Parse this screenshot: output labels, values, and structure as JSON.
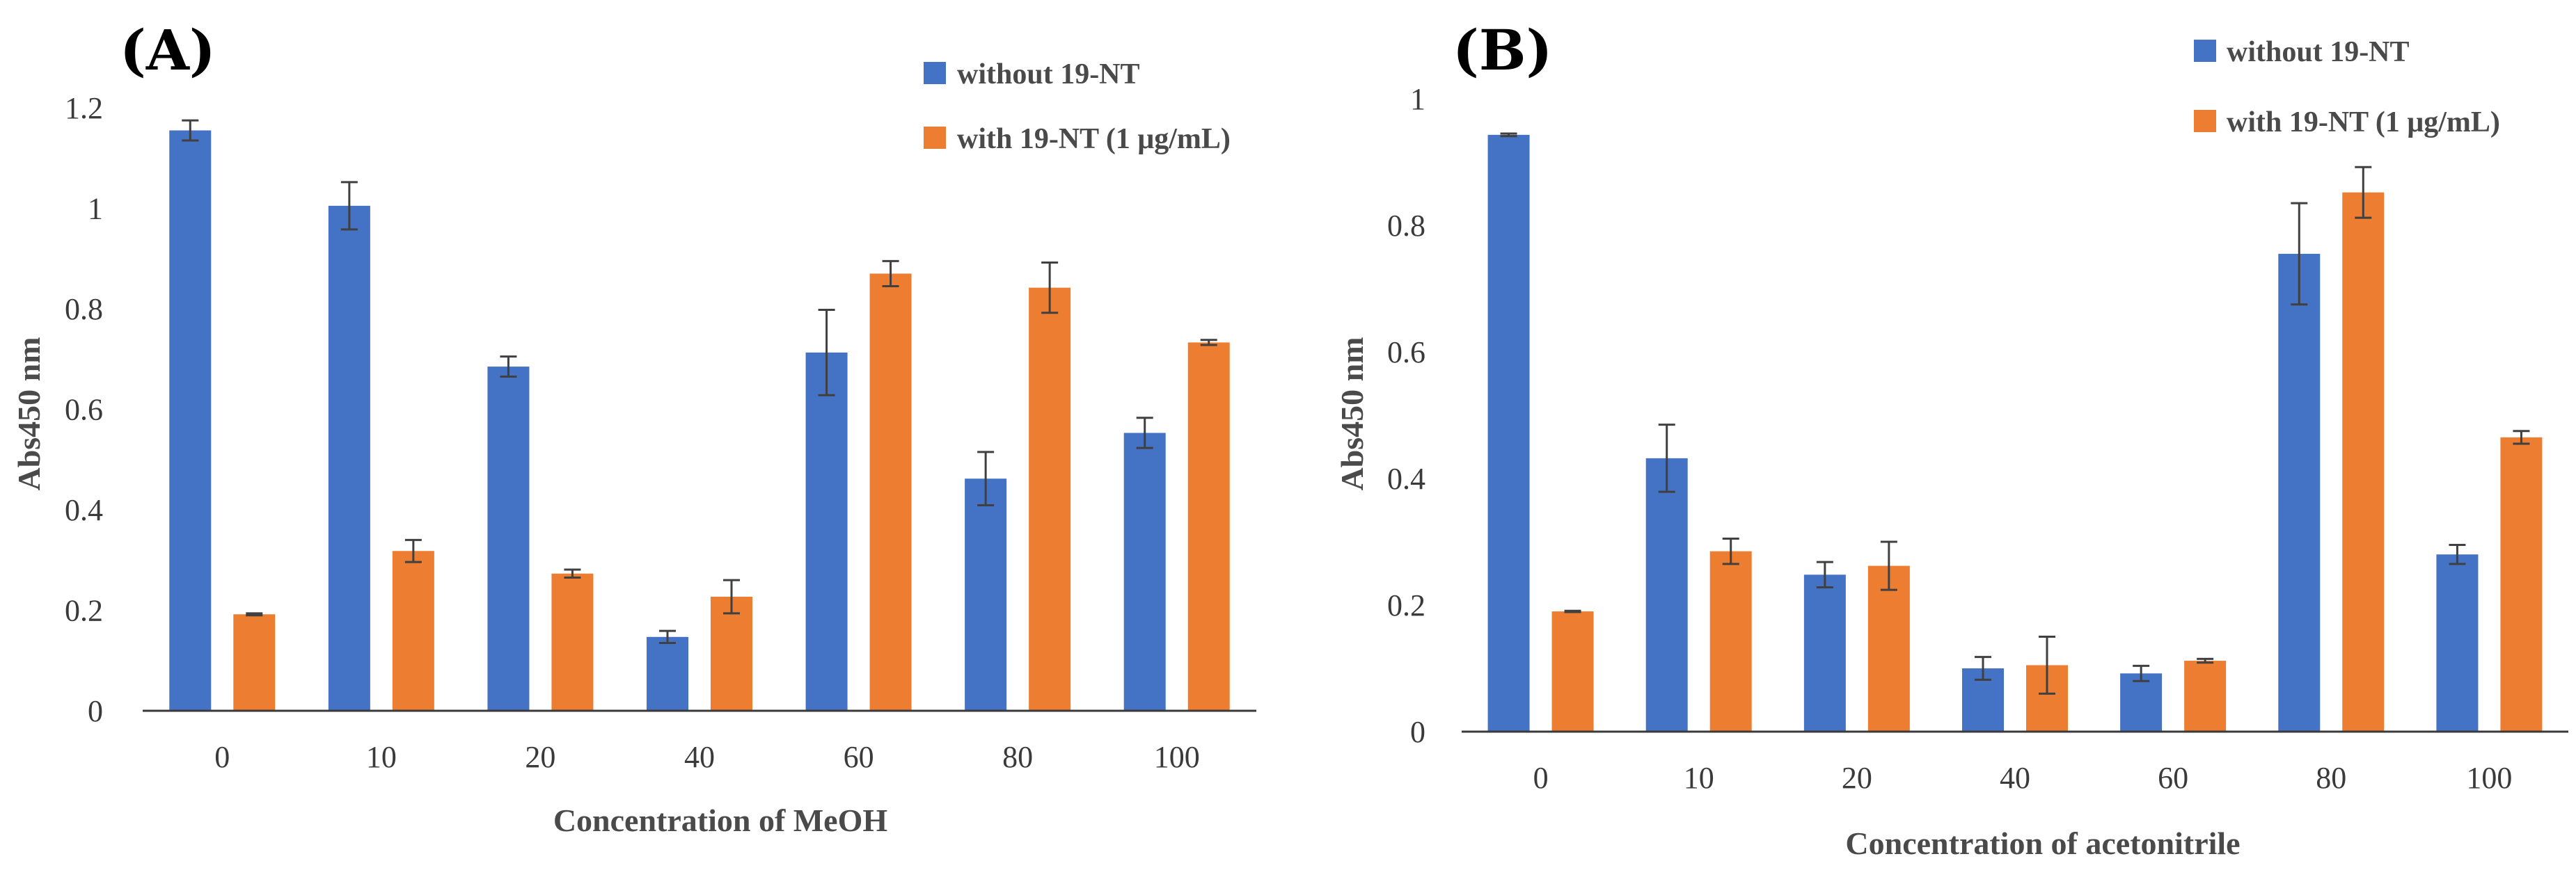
{
  "colors": {
    "series1": "#4472C4",
    "series2": "#ED7D31",
    "axis": "#3a3a3a",
    "error": "#404040"
  },
  "chart_data": [
    {
      "type": "bar",
      "panel": "(A)",
      "title": "",
      "xlabel": "Concentration of MeOH",
      "ylabel": "Abs450 nm",
      "categories": [
        "0",
        "10",
        "20",
        "40",
        "60",
        "80",
        "100"
      ],
      "ylim": [
        0,
        1.2
      ],
      "yticks": [
        0,
        0.2,
        0.4,
        0.6,
        0.8,
        1,
        1.2
      ],
      "ytick_labels": [
        "0",
        "0.2",
        "0.4",
        "0.6",
        "0.8",
        "1",
        "1.2"
      ],
      "legend_position": "top-right",
      "series": [
        {
          "name": "without 19-NT",
          "values": [
            1.155,
            1.005,
            0.685,
            0.147,
            0.713,
            0.462,
            0.553
          ],
          "errors": [
            0.02,
            0.047,
            0.02,
            0.012,
            0.085,
            0.053,
            0.03
          ]
        },
        {
          "name": "with 19-NT (1 μg/mL)",
          "values": [
            0.192,
            0.318,
            0.273,
            0.227,
            0.87,
            0.842,
            0.733
          ],
          "errors": [
            0.002,
            0.022,
            0.008,
            0.033,
            0.025,
            0.05,
            0.005
          ]
        }
      ]
    },
    {
      "type": "bar",
      "panel": "(B)",
      "title": "",
      "xlabel": "Concentration of acetonitrile",
      "ylabel": "Abs450 nm",
      "categories": [
        "0",
        "10",
        "20",
        "40",
        "60",
        "80",
        "100"
      ],
      "ylim": [
        0,
        1
      ],
      "yticks": [
        0,
        0.2,
        0.4,
        0.6,
        0.8,
        1
      ],
      "ytick_labels": [
        "0",
        "0.2",
        "0.4",
        "0.6",
        "0.8",
        "1"
      ],
      "legend_position": "top-right",
      "series": [
        {
          "name": "without 19-NT",
          "values": [
            0.943,
            0.432,
            0.248,
            0.1,
            0.092,
            0.755,
            0.28
          ],
          "errors": [
            0.002,
            0.053,
            0.02,
            0.018,
            0.012,
            0.08,
            0.015
          ]
        },
        {
          "name": "with 19-NT (1 μg/mL)",
          "values": [
            0.19,
            0.285,
            0.262,
            0.105,
            0.112,
            0.852,
            0.465
          ],
          "errors": [
            0.001,
            0.02,
            0.038,
            0.045,
            0.003,
            0.04,
            0.01
          ]
        }
      ]
    }
  ]
}
